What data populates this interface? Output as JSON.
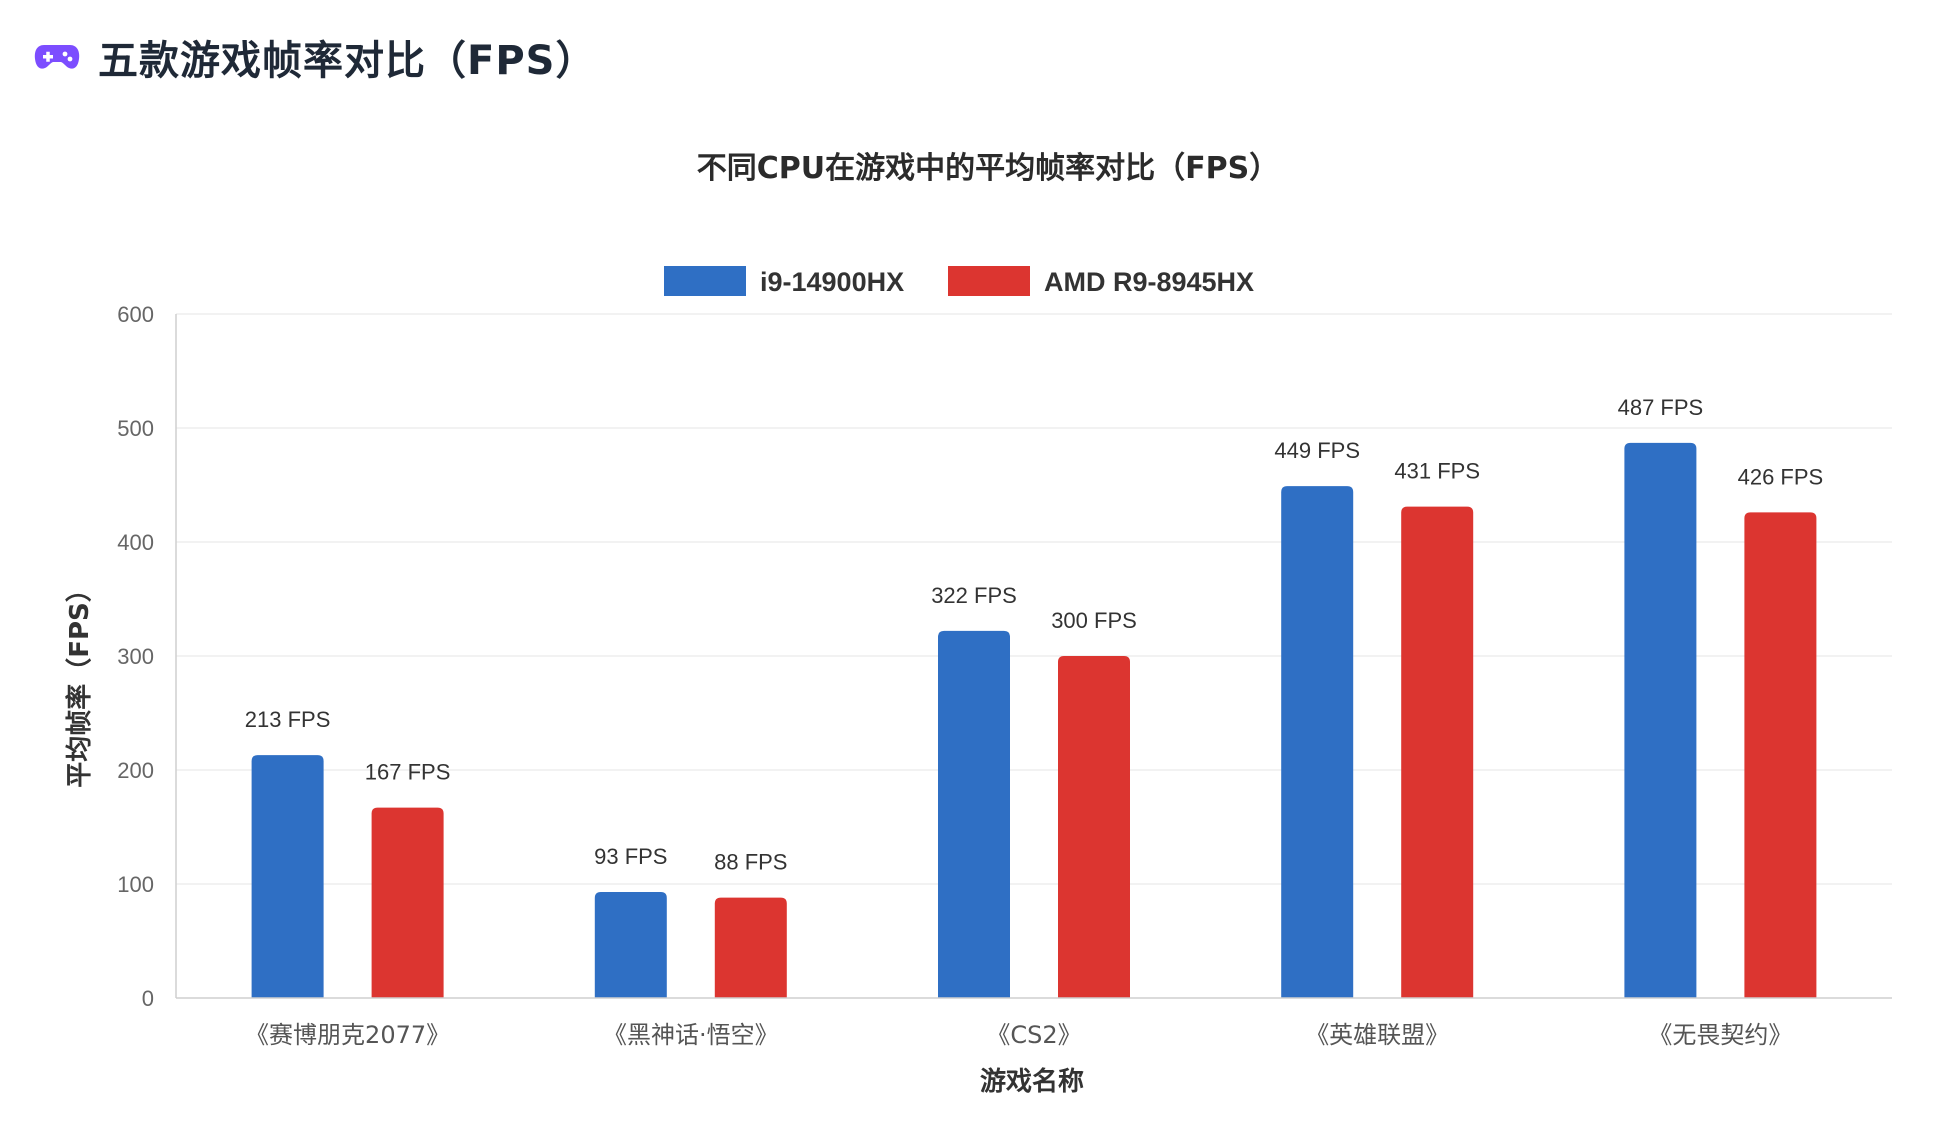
{
  "page": {
    "title": "五款游戏帧率对比（FPS）",
    "icon": "gamepad-icon",
    "icon_color": "#7c4dff"
  },
  "chart_data": {
    "type": "bar",
    "title": "不同CPU在游戏中的平均帧率对比（FPS）",
    "xlabel": "游戏名称",
    "ylabel": "平均帧率（FPS）",
    "categories": [
      "《赛博朋克2077》",
      "《黑神话·悟空》",
      "《CS2》",
      "《英雄联盟》",
      "《无畏契约》"
    ],
    "series": [
      {
        "name": "i9-14900HX",
        "color": "#2f6fc4",
        "values": [
          213,
          93,
          322,
          449,
          487
        ],
        "labels": [
          "213 FPS",
          "93 FPS",
          "322 FPS",
          "449 FPS",
          "487 FPS"
        ]
      },
      {
        "name": "AMD R9-8945HX",
        "color": "#dc3530",
        "values": [
          167,
          88,
          300,
          431,
          426
        ],
        "labels": [
          "167 FPS",
          "88 FPS",
          "300 FPS",
          "431 FPS",
          "426 FPS"
        ]
      }
    ],
    "ylim": [
      0,
      600
    ],
    "yticks": [
      "0",
      "100",
      "200",
      "300",
      "400",
      "500",
      "600"
    ],
    "grid": true,
    "legend_position": "top-center"
  }
}
